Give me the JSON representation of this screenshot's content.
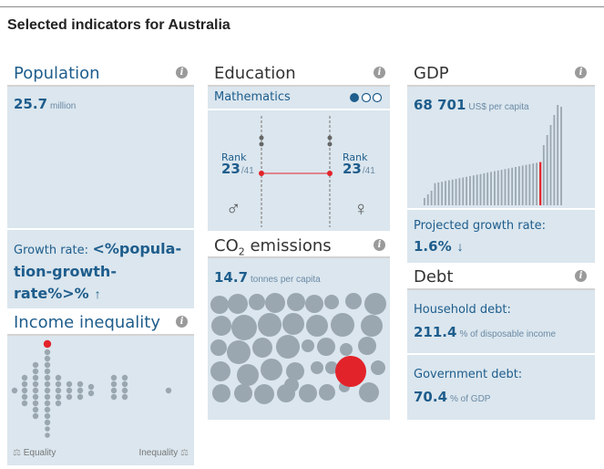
{
  "page": {
    "title": "Selected indicators for Australia"
  },
  "population": {
    "title": "Population",
    "value": "25.7",
    "unit": "million",
    "growth_label": "Growth rate:",
    "growth_value_line1": "<%popula-",
    "growth_value_line2": "tion-growth-",
    "growth_value_line3": "rate%>%",
    "growth_arrow": "↑"
  },
  "education": {
    "title": "Education",
    "subject": "Mathematics",
    "rank_label_left": "Rank",
    "rank_value_left": "23",
    "rank_total_left": "/41",
    "rank_label_right": "Rank",
    "rank_value_right": "23",
    "rank_total_right": "/41",
    "male_symbol": "♂",
    "female_symbol": "♀"
  },
  "gdp": {
    "title": "GDP",
    "value": "68 701",
    "unit": "US$ per capita",
    "growth_label": "Projected growth rate:",
    "growth_value": "1.6%",
    "growth_arrow": "↓"
  },
  "co2": {
    "title_main": "CO",
    "title_sub": "2",
    "title_rest": " emissions",
    "value": "14.7",
    "unit": "tonnes per capita"
  },
  "debt": {
    "title": "Debt",
    "household_label": "Household debt:",
    "household_value": "211.4",
    "household_unit": "% of disposable income",
    "government_label": "Government debt:",
    "government_value": "70.4",
    "government_unit": "% of GDP"
  },
  "inequality": {
    "title": "Income inequality",
    "left_label": "Equality",
    "right_label": "Inequality"
  },
  "colors": {
    "accent_blue": "#1e5d8c",
    "panel_bg": "#dbe6ee",
    "highlight_red": "#e3232a",
    "mark_grey": "#9aa7b0"
  },
  "icons": {
    "info": "info-icon"
  }
}
